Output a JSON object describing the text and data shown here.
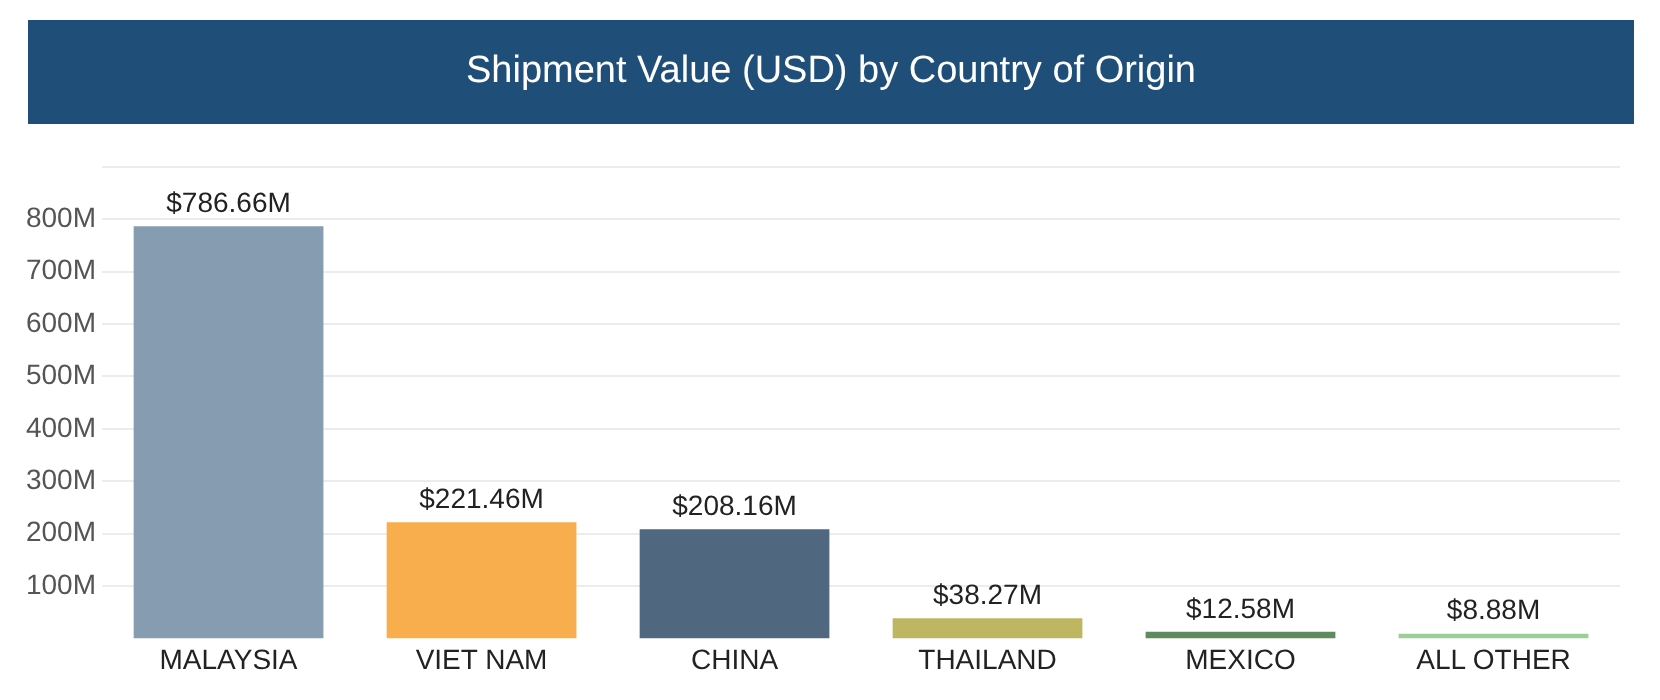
{
  "chart_data": {
    "type": "bar",
    "title": "Shipment Value (USD) by Country of Origin",
    "categories": [
      "MALAYSIA",
      "VIET NAM",
      "CHINA",
      "THAILAND",
      "MEXICO",
      "ALL OTHER"
    ],
    "values": [
      786.66,
      221.46,
      208.16,
      38.27,
      12.58,
      8.88
    ],
    "colors": [
      "#869cb0",
      "#f8ae4c",
      "#4f6880",
      "#bfb661",
      "#5f8a5e",
      "#9bcf95"
    ],
    "value_labels": [
      "$786.66M",
      "$221.46M",
      "$208.16M",
      "$38.27M",
      "$12.58M",
      "$8.88M"
    ],
    "ylim": [
      0,
      900
    ],
    "yticks": [
      {
        "value": 100,
        "label": "100M"
      },
      {
        "value": 200,
        "label": "200M"
      },
      {
        "value": 300,
        "label": "300M"
      },
      {
        "value": 400,
        "label": "400M"
      },
      {
        "value": 500,
        "label": "500M"
      },
      {
        "value": 600,
        "label": "600M"
      },
      {
        "value": 700,
        "label": "700M"
      },
      {
        "value": 800,
        "label": "800M"
      },
      {
        "value": 900,
        "label": null
      }
    ],
    "grid": "y",
    "legend": false
  }
}
